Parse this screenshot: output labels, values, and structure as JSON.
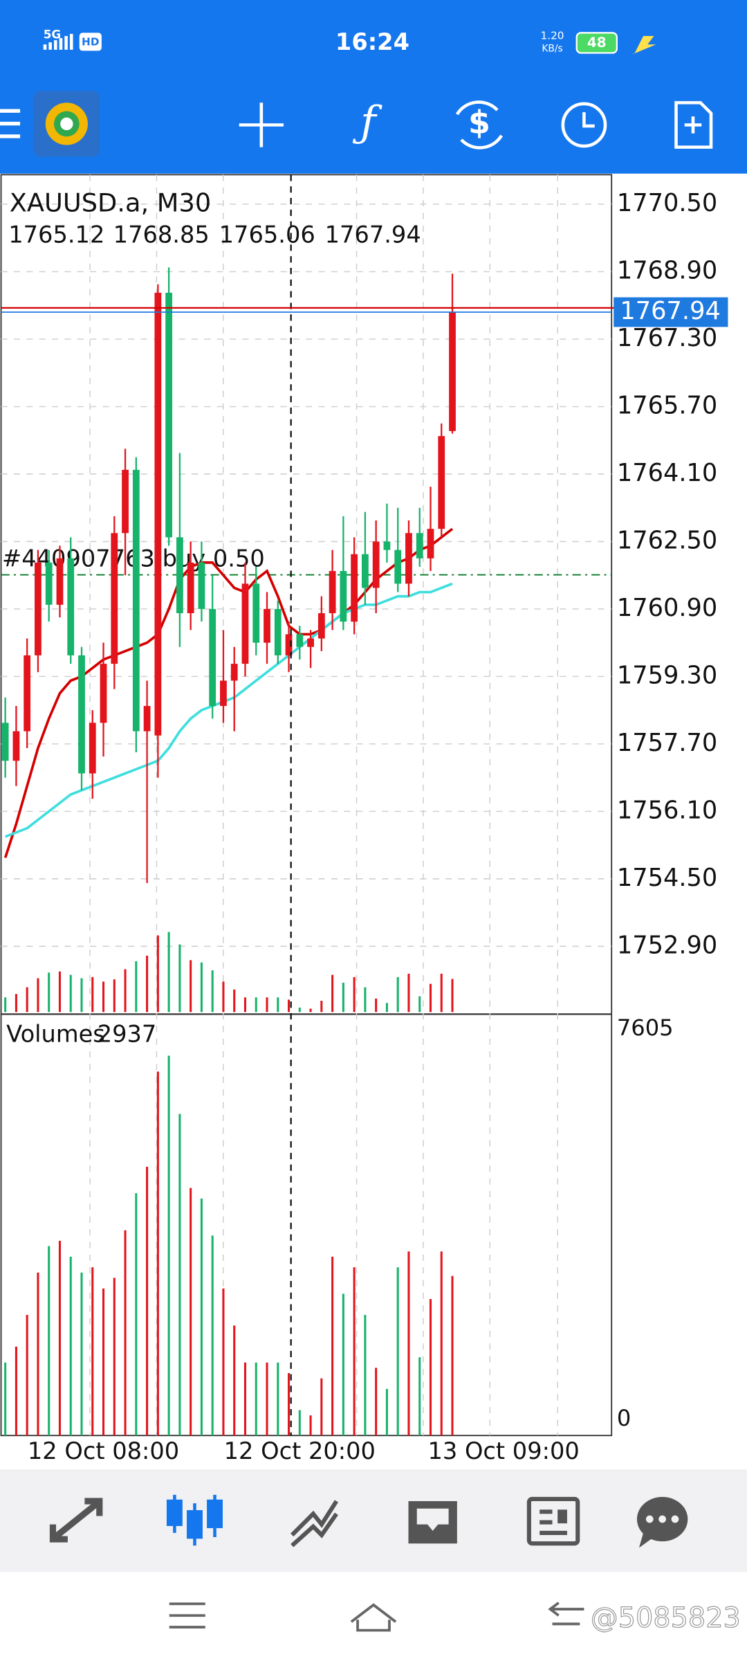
{
  "status_bar": {
    "network": "5G",
    "hd": "HD",
    "time": "16:24",
    "speed": "1.20",
    "speed_unit": "KB/s",
    "battery": "48"
  },
  "chart_data": [
    {
      "type": "candlestick",
      "title": "XAUUSD.a, M30",
      "open": [
        1758.2,
        1757.3,
        1758.0,
        1759.8,
        1762.0,
        1761.0,
        1762.1,
        1759.8,
        1757.0,
        1758.2,
        1759.6,
        1762.7,
        1764.2,
        1758.0,
        1757.9,
        1768.4,
        1762.6,
        1760.8,
        1762.0,
        1760.9,
        1758.6,
        1759.2,
        1759.6,
        1761.5,
        1760.1,
        1760.9,
        1759.8,
        1760.3,
        1760.0,
        1760.2,
        1760.8,
        1761.8,
        1760.6,
        1762.2,
        1761.4,
        1762.5,
        1762.3,
        1761.5,
        1762.7,
        1762.1,
        1762.8,
        1765.12
      ],
      "high": [
        1758.8,
        1758.6,
        1760.2,
        1762.3,
        1762.3,
        1762.4,
        1762.6,
        1760.0,
        1758.5,
        1760.1,
        1763.1,
        1764.7,
        1764.5,
        1759.2,
        1768.6,
        1769.0,
        1764.6,
        1762.5,
        1762.5,
        1761.7,
        1760.4,
        1760.0,
        1762.0,
        1761.9,
        1761.3,
        1761.1,
        1760.6,
        1760.5,
        1760.4,
        1761.2,
        1762.3,
        1763.1,
        1762.6,
        1763.2,
        1763.0,
        1763.4,
        1763.3,
        1763.0,
        1763.3,
        1763.8,
        1765.3,
        1768.85
      ],
      "low": [
        1756.9,
        1756.7,
        1757.6,
        1759.4,
        1760.6,
        1760.7,
        1759.6,
        1756.6,
        1756.4,
        1757.4,
        1759.0,
        1761.7,
        1757.5,
        1754.4,
        1756.9,
        1762.4,
        1760.0,
        1760.4,
        1760.6,
        1758.3,
        1758.2,
        1758.0,
        1759.3,
        1759.8,
        1759.6,
        1759.6,
        1759.4,
        1759.7,
        1759.5,
        1759.9,
        1760.4,
        1760.4,
        1760.3,
        1761.0,
        1760.8,
        1762.0,
        1761.3,
        1761.2,
        1761.9,
        1761.8,
        1762.6,
        1765.06
      ],
      "close": [
        1757.3,
        1758.0,
        1759.8,
        1762.0,
        1761.0,
        1762.1,
        1759.8,
        1757.0,
        1758.2,
        1759.6,
        1762.7,
        1764.2,
        1758.0,
        1758.6,
        1768.4,
        1762.6,
        1760.8,
        1762.0,
        1760.9,
        1758.6,
        1759.2,
        1759.6,
        1761.5,
        1760.1,
        1760.9,
        1759.8,
        1760.3,
        1760.0,
        1760.2,
        1760.8,
        1761.8,
        1760.6,
        1762.2,
        1761.4,
        1762.5,
        1762.3,
        1761.5,
        1762.7,
        1762.1,
        1762.8,
        1765.0,
        1767.94
      ],
      "up_color": "#e3141c",
      "down_color": "#16b36b",
      "series": [
        {
          "color": "#d40000",
          "values": [
            1755.0,
            1755.8,
            1756.7,
            1757.6,
            1758.3,
            1758.9,
            1759.2,
            1759.3,
            1759.5,
            1759.7,
            1759.8,
            1759.9,
            1760.0,
            1760.1,
            1760.3,
            1760.9,
            1761.6,
            1761.9,
            1762.0,
            1762.0,
            1761.7,
            1761.4,
            1761.3,
            1761.6,
            1761.8,
            1761.2,
            1760.5,
            1760.3,
            1760.3,
            1760.4,
            1760.6,
            1760.8,
            1761.0,
            1761.3,
            1761.6,
            1761.8,
            1762.0,
            1762.1,
            1762.3,
            1762.4,
            1762.6,
            1762.8
          ]
        },
        {
          "color": "#3fdede",
          "values": [
            1755.5,
            1755.6,
            1755.7,
            1755.9,
            1756.1,
            1756.3,
            1756.5,
            1756.6,
            1756.7,
            1756.8,
            1756.9,
            1757.0,
            1757.1,
            1757.2,
            1757.3,
            1757.6,
            1758.0,
            1758.3,
            1758.5,
            1758.6,
            1758.7,
            1758.8,
            1759.0,
            1759.2,
            1759.4,
            1759.6,
            1759.8,
            1760.0,
            1760.2,
            1760.4,
            1760.6,
            1760.8,
            1760.9,
            1761.0,
            1761.0,
            1761.1,
            1761.2,
            1761.2,
            1761.3,
            1761.3,
            1761.4,
            1761.5
          ]
        }
      ],
      "ylim": [
        1751.29,
        1771.2
      ],
      "yticks": [
        {
          "value": 1752.9,
          "label": "1752.90"
        },
        {
          "value": 1754.5,
          "label": "1754.50"
        },
        {
          "value": 1756.1,
          "label": "1756.10"
        },
        {
          "value": 1757.7,
          "label": "1757.70"
        },
        {
          "value": 1759.3,
          "label": "1759.30"
        },
        {
          "value": 1760.9,
          "label": "1760.90"
        },
        {
          "value": 1762.5,
          "label": "1762.50"
        },
        {
          "value": 1764.1,
          "label": "1764.10"
        },
        {
          "value": 1765.7,
          "label": "1765.70"
        },
        {
          "value": 1767.3,
          "label": "1767.30"
        },
        {
          "value": 1768.9,
          "label": "1768.90"
        },
        {
          "value": 1770.5,
          "label": "1770.50"
        }
      ],
      "xlim": [
        0,
        55.6
      ],
      "xticks": [
        {
          "value": 9,
          "label": "12 Oct 08:00"
        },
        {
          "value": 27,
          "label": "12 Oct 20:00"
        },
        {
          "value": 45.7,
          "label": "13 Oct 09:00"
        }
      ],
      "bid": 1767.94,
      "bid_color": "#1f7ae0",
      "ask": 1768.04,
      "ask_color": "#d40000",
      "order": {
        "label": "#440907763 buy  0.50",
        "price": 1761.71,
        "color": "#0a7a2a"
      },
      "grid": true
    },
    {
      "type": "bar",
      "title": "Volumes",
      "values": [
        1300,
        1600,
        2200,
        3000,
        3500,
        3600,
        3300,
        3000,
        3100,
        2700,
        2900,
        3800,
        4500,
        5000,
        6800,
        7100,
        6000,
        4600,
        4400,
        3700,
        2700,
        2000,
        1300,
        1300,
        1300,
        1300,
        1100,
        400,
        300,
        1000,
        3300,
        2600,
        3100,
        2200,
        1200,
        800,
        3100,
        3400,
        1400,
        2500,
        3400,
        2937
      ],
      "ylim": [
        0,
        7605
      ],
      "yticks": [
        0,
        7605
      ]
    }
  ],
  "watermark": "@5085823"
}
